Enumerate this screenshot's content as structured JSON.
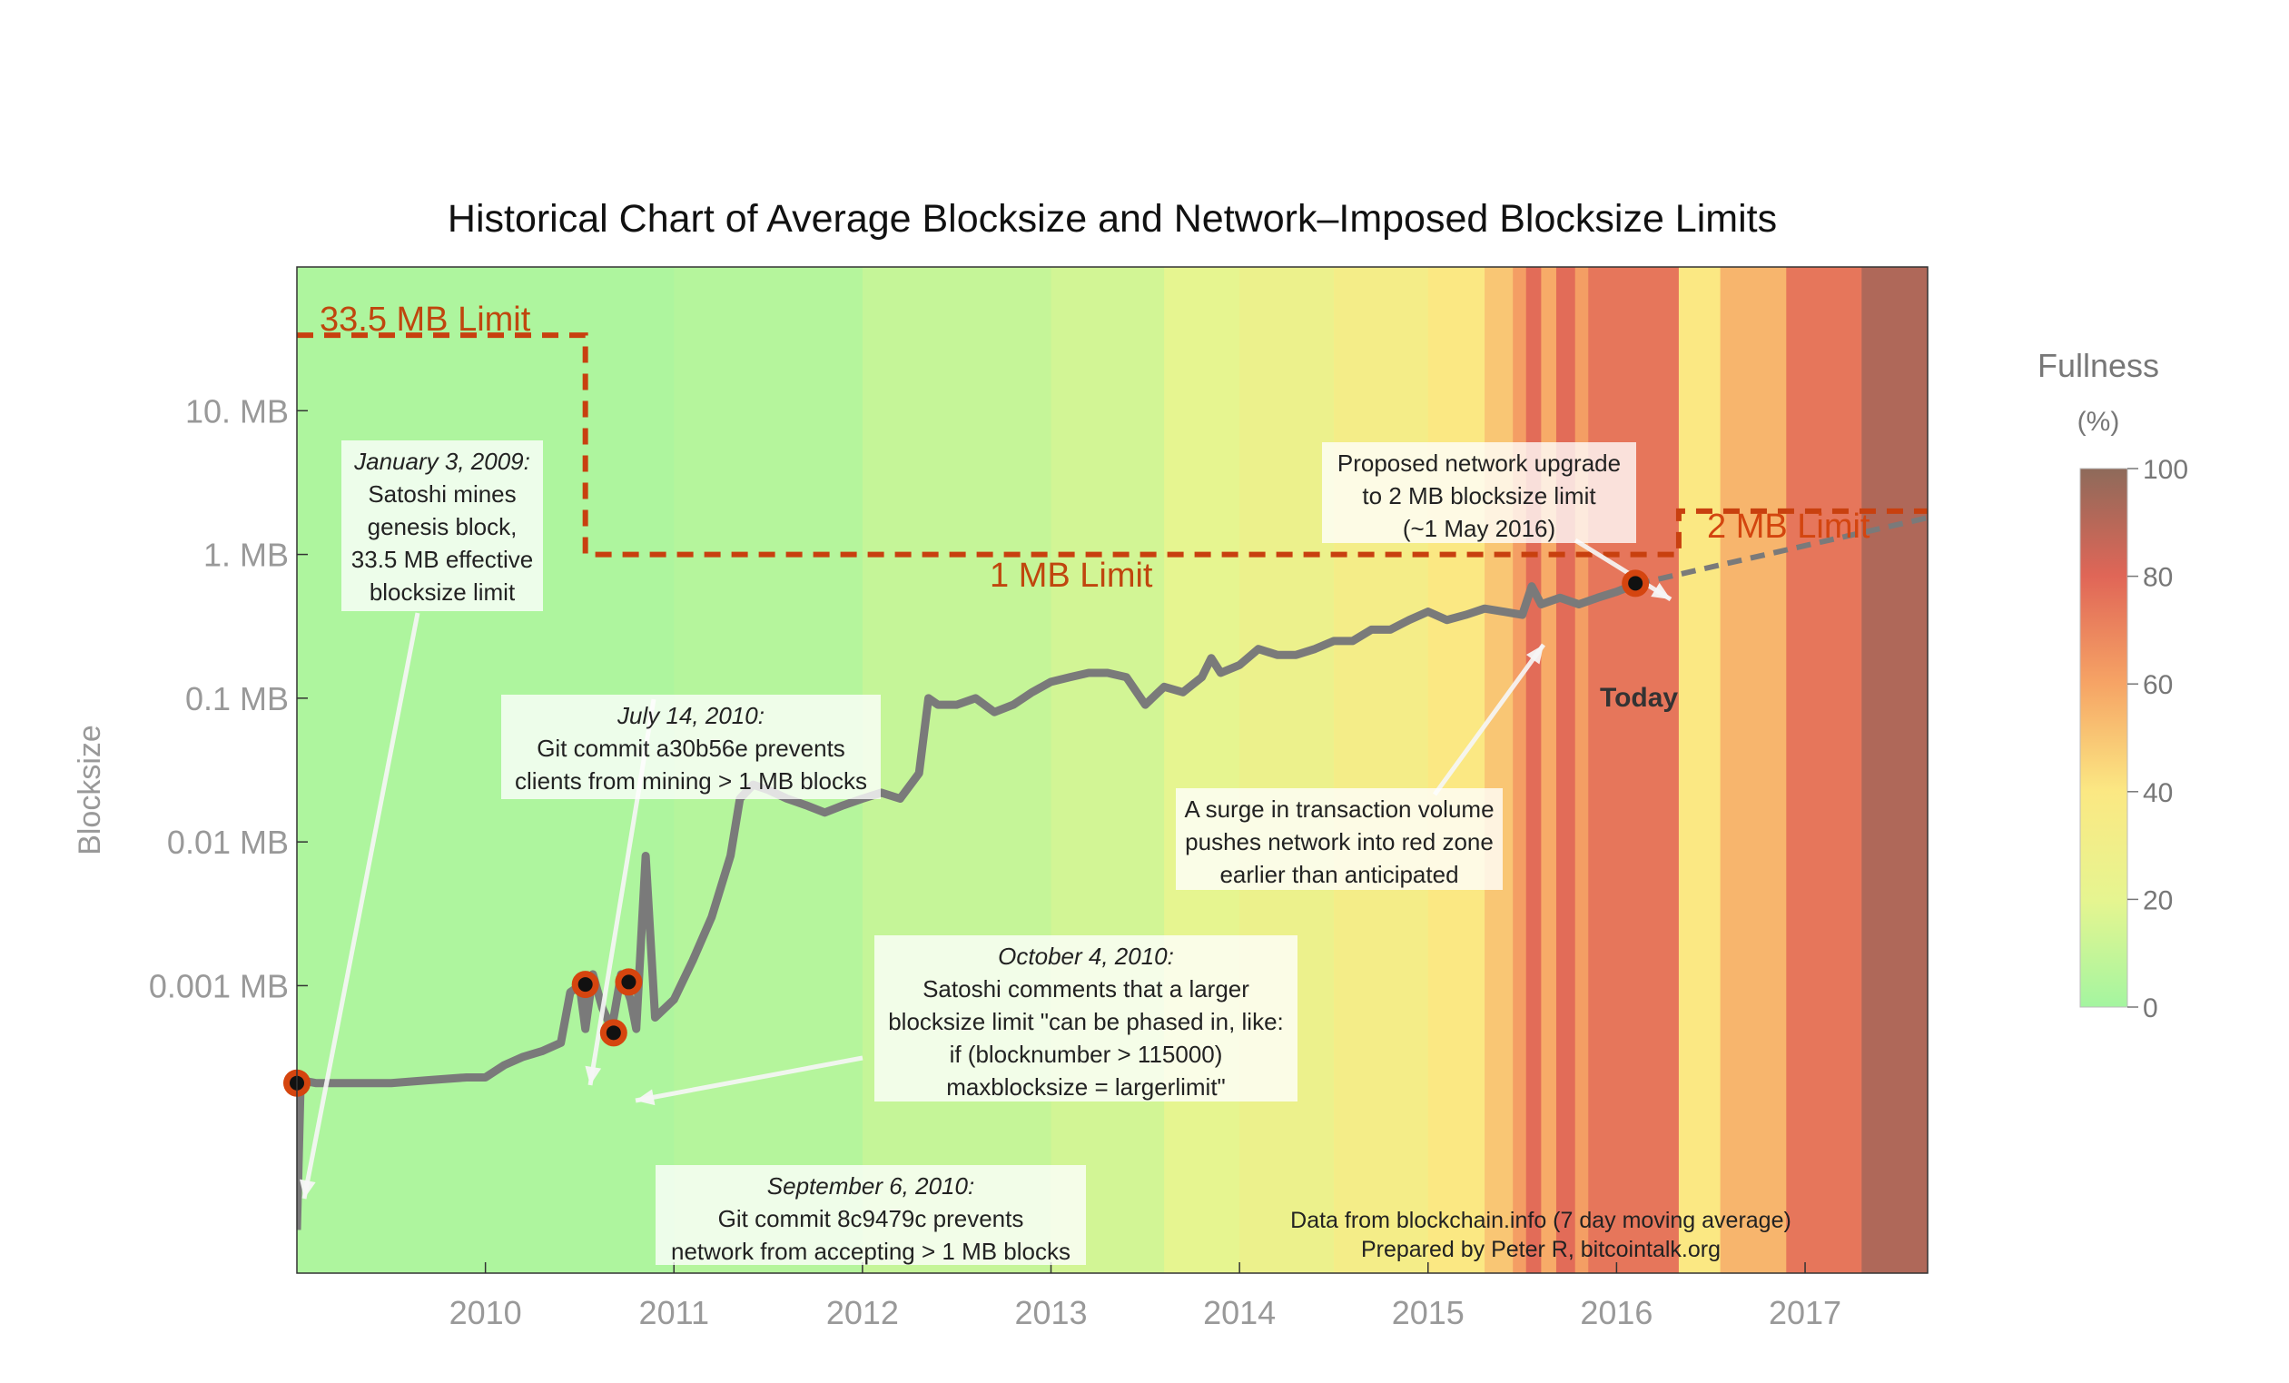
{
  "chart_data": {
    "type": "line",
    "title": "Historical Chart of Average Blocksize and Network–Imposed Blocksize Limits",
    "ylabel": "Blocksize",
    "xlabel": "",
    "y_scale": "log",
    "ylim_mb": [
      1e-05,
      100
    ],
    "xlim_year": [
      2009.0,
      2017.65
    ],
    "x_ticks": [
      "2010",
      "2011",
      "2012",
      "2013",
      "2014",
      "2015",
      "2016",
      "2017"
    ],
    "y_ticks": [
      {
        "value": 10,
        "label": "10. MB"
      },
      {
        "value": 1,
        "label": "1. MB"
      },
      {
        "value": 0.1,
        "label": "0.1 MB"
      },
      {
        "value": 0.01,
        "label": "0.01 MB"
      },
      {
        "value": 0.001,
        "label": "0.001 MB"
      }
    ],
    "grid": false,
    "series": [
      {
        "type": "line",
        "color": "#7a7a7a",
        "x": [
          2009.0,
          2009.02,
          2009.1,
          2009.3,
          2009.5,
          2009.7,
          2009.9,
          2010.0,
          2010.1,
          2010.2,
          2010.3,
          2010.4,
          2010.45,
          2010.5,
          2010.53,
          2010.57,
          2010.62,
          2010.67,
          2010.72,
          2010.77,
          2010.8,
          2010.85,
          2010.9,
          2011.0,
          2011.1,
          2011.2,
          2011.3,
          2011.35,
          2011.42,
          2011.5,
          2011.6,
          2011.7,
          2011.8,
          2011.9,
          2012.0,
          2012.1,
          2012.2,
          2012.3,
          2012.35,
          2012.4,
          2012.5,
          2012.6,
          2012.7,
          2012.8,
          2012.9,
          2013.0,
          2013.1,
          2013.2,
          2013.3,
          2013.4,
          2013.5,
          2013.6,
          2013.7,
          2013.8,
          2013.85,
          2013.9,
          2014.0,
          2014.1,
          2014.2,
          2014.3,
          2014.4,
          2014.5,
          2014.6,
          2014.7,
          2014.8,
          2014.9,
          2015.0,
          2015.1,
          2015.2,
          2015.3,
          2015.4,
          2015.5,
          2015.55,
          2015.6,
          2015.7,
          2015.8,
          2015.9,
          2016.0,
          2016.1
        ],
        "values": [
          2e-05,
          0.00022,
          0.00021,
          0.00021,
          0.00021,
          0.00022,
          0.00023,
          0.00023,
          0.00028,
          0.00032,
          0.00035,
          0.0004,
          0.0009,
          0.001,
          0.0005,
          0.0012,
          0.0007,
          0.0005,
          0.0012,
          0.0008,
          0.0005,
          0.008,
          0.0006,
          0.0008,
          0.0015,
          0.003,
          0.008,
          0.02,
          0.025,
          0.023,
          0.02,
          0.018,
          0.016,
          0.018,
          0.02,
          0.022,
          0.02,
          0.03,
          0.1,
          0.09,
          0.09,
          0.1,
          0.08,
          0.09,
          0.11,
          0.13,
          0.14,
          0.15,
          0.15,
          0.14,
          0.09,
          0.12,
          0.11,
          0.14,
          0.19,
          0.15,
          0.17,
          0.22,
          0.2,
          0.2,
          0.22,
          0.25,
          0.25,
          0.3,
          0.3,
          0.35,
          0.4,
          0.35,
          0.38,
          0.42,
          0.4,
          0.38,
          0.6,
          0.45,
          0.5,
          0.45,
          0.5,
          0.55,
          0.62
        ]
      },
      {
        "type": "projection",
        "color": "#7a7a7a",
        "dashed": true,
        "x": [
          2016.1,
          2017.65
        ],
        "values": [
          0.62,
          1.8
        ]
      },
      {
        "name": "limit",
        "type": "step",
        "color": "#c8400f",
        "dashed": true,
        "x": [
          2009.0,
          2010.53,
          2010.53,
          2016.33,
          2016.33,
          2017.65
        ],
        "values": [
          33.5,
          33.5,
          1.0,
          1.0,
          2.0,
          2.0
        ]
      }
    ],
    "limit_labels": [
      "33.5 MB Limit",
      "1 MB Limit",
      "2 MB Limit"
    ],
    "events": [
      {
        "x": 2009.0,
        "value": 0.00021
      },
      {
        "x": 2010.53,
        "value": 0.00102
      },
      {
        "x": 2010.68,
        "value": 0.00047
      },
      {
        "x": 2010.76,
        "value": 0.00106
      },
      {
        "x": 2016.1,
        "value": 0.63
      }
    ],
    "today_label": "Today",
    "fullness_bands": [
      {
        "start": 2009.0,
        "end": 2011.0,
        "fullness": 3
      },
      {
        "start": 2011.0,
        "end": 2012.0,
        "fullness": 5
      },
      {
        "start": 2012.0,
        "end": 2013.0,
        "fullness": 10
      },
      {
        "start": 2013.0,
        "end": 2013.6,
        "fullness": 14
      },
      {
        "start": 2013.6,
        "end": 2014.0,
        "fullness": 20
      },
      {
        "start": 2014.0,
        "end": 2014.5,
        "fullness": 26
      },
      {
        "start": 2014.5,
        "end": 2015.0,
        "fullness": 33
      },
      {
        "start": 2015.0,
        "end": 2015.3,
        "fullness": 40
      },
      {
        "start": 2015.3,
        "end": 2015.45,
        "fullness": 50
      },
      {
        "start": 2015.45,
        "end": 2015.52,
        "fullness": 62
      },
      {
        "start": 2015.52,
        "end": 2015.6,
        "fullness": 78
      },
      {
        "start": 2015.6,
        "end": 2015.68,
        "fullness": 58
      },
      {
        "start": 2015.68,
        "end": 2015.78,
        "fullness": 78
      },
      {
        "start": 2015.78,
        "end": 2015.85,
        "fullness": 62
      },
      {
        "start": 2015.85,
        "end": 2016.33,
        "fullness": 75
      },
      {
        "start": 2016.33,
        "end": 2016.55,
        "fullness": 40
      },
      {
        "start": 2016.55,
        "end": 2016.9,
        "fullness": 55
      },
      {
        "start": 2016.9,
        "end": 2017.3,
        "fullness": 75
      },
      {
        "start": 2017.3,
        "end": 2017.65,
        "fullness": 92
      }
    ],
    "colorbar": {
      "title": "Fullness",
      "unit": "(%)",
      "ticks": [
        "100",
        "80",
        "60",
        "40",
        "20",
        "0"
      ],
      "stops": [
        "#a4f5a0",
        "#e6f590",
        "#fbe883",
        "#f6a465",
        "#e06657",
        "#8e6a5a"
      ]
    },
    "annotations": [
      {
        "id": "genesis",
        "lines": [
          {
            "text": "January 3, 2009:",
            "italic": true
          },
          {
            "text": "Satoshi mines",
            "italic": false
          },
          {
            "text": "genesis block,",
            "italic": false
          },
          {
            "text": "33.5 MB effective",
            "italic": false
          },
          {
            "text": "blocksize limit",
            "italic": false
          }
        ]
      },
      {
        "id": "july",
        "lines": [
          {
            "text": "July 14, 2010:",
            "italic": true
          },
          {
            "text": "Git commit a30b56e prevents",
            "italic": false
          },
          {
            "text": "clients from mining > 1 MB blocks",
            "italic": false
          }
        ]
      },
      {
        "id": "october",
        "lines": [
          {
            "text": "October 4, 2010:",
            "italic": true
          },
          {
            "text": "Satoshi comments that a larger",
            "italic": false
          },
          {
            "text": "blocksize limit \"can be phased in, like:",
            "italic": false
          },
          {
            "text": "if (blocknumber > 115000)",
            "italic": false
          },
          {
            "text": "maxblocksize = largerlimit\"",
            "italic": false
          }
        ]
      },
      {
        "id": "september",
        "lines": [
          {
            "text": "September 6, 2010:",
            "italic": true
          },
          {
            "text": "Git commit 8c9479c prevents",
            "italic": false
          },
          {
            "text": "network from accepting > 1 MB blocks",
            "italic": false
          }
        ]
      },
      {
        "id": "surge",
        "lines": [
          {
            "text": "A surge in transaction volume",
            "italic": false
          },
          {
            "text": "pushes network into red zone",
            "italic": false
          },
          {
            "text": "earlier than anticipated",
            "italic": false
          }
        ]
      },
      {
        "id": "proposed",
        "lines": [
          {
            "text": "Proposed network upgrade",
            "italic": false
          },
          {
            "text": "to 2 MB blocksize limit",
            "italic": false
          },
          {
            "text": "(~1 May 2016)",
            "italic": false
          }
        ]
      }
    ],
    "credits": [
      "Data from blockchain.info (7 day moving average)",
      "Prepared by Peter R, bitcointalk.org"
    ]
  }
}
